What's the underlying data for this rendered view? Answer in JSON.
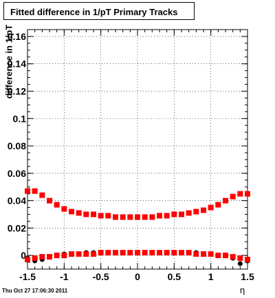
{
  "chart_data": {
    "type": "scatter",
    "title": "Fitted difference in 1/pT  Primary Tracks",
    "xlabel": "η",
    "ylabel": "difference in 1/pT",
    "xlim": [
      -1.5,
      1.5
    ],
    "ylim": [
      -0.01,
      0.165
    ],
    "x_ticks": [
      "-1.5",
      "-1",
      "-0.5",
      "0",
      "0.5",
      "1",
      "1.5"
    ],
    "y_ticks": [
      "0",
      "0.02",
      "0.04",
      "0.06",
      "0.08",
      "0.1",
      "0.12",
      "0.14",
      "0.16"
    ],
    "grid": true,
    "timestamp": "Thu Oct 27 17:06:30 2011",
    "colors": {
      "black_series": "#000000",
      "red_series": "#ff0000"
    },
    "series": [
      {
        "color": "black",
        "marker": "circle",
        "x": [
          -1.5,
          -1.4,
          -1.3,
          -1.2,
          -1.1,
          -1.0,
          -0.9,
          -0.8,
          -0.7,
          -0.6,
          -0.5,
          -0.4,
          -0.3,
          -0.2,
          -0.1,
          0.0,
          0.1,
          0.2,
          0.3,
          0.4,
          0.5,
          0.6,
          0.7,
          0.8,
          0.9,
          1.0,
          1.1,
          1.2,
          1.3,
          1.4,
          1.5
        ],
        "y": [
          -0.002,
          -0.004,
          -0.003,
          -0.001,
          0.0,
          0.001,
          0.001,
          0.001,
          0.002,
          0.002,
          0.002,
          0.002,
          0.002,
          0.002,
          0.002,
          0.002,
          0.002,
          0.002,
          0.002,
          0.002,
          0.002,
          0.002,
          0.002,
          0.002,
          0.001,
          0.001,
          0.0,
          0.0,
          -0.002,
          -0.006,
          -0.004
        ]
      },
      {
        "color": "red",
        "marker": "square",
        "x": [
          -1.5,
          -1.4,
          -1.3,
          -1.2,
          -1.1,
          -1.0,
          -0.9,
          -0.8,
          -0.7,
          -0.6,
          -0.5,
          -0.4,
          -0.3,
          -0.2,
          -0.1,
          0.0,
          0.1,
          0.2,
          0.3,
          0.4,
          0.5,
          0.6,
          0.7,
          0.8,
          0.9,
          1.0,
          1.1,
          1.2,
          1.3,
          1.4,
          1.5
        ],
        "y": [
          0.047,
          0.047,
          0.044,
          0.04,
          0.037,
          0.034,
          0.032,
          0.031,
          0.03,
          0.03,
          0.029,
          0.029,
          0.028,
          0.028,
          0.028,
          0.028,
          0.028,
          0.028,
          0.029,
          0.029,
          0.03,
          0.03,
          0.031,
          0.032,
          0.033,
          0.035,
          0.037,
          0.04,
          0.043,
          0.045,
          0.045
        ]
      },
      {
        "color": "red",
        "marker": "square",
        "x": [
          -1.5,
          -1.4,
          -1.3,
          -1.2,
          -1.1,
          -1.0,
          -0.9,
          -0.8,
          -0.7,
          -0.6,
          -0.5,
          -0.4,
          -0.3,
          -0.2,
          -0.1,
          0.0,
          0.1,
          0.2,
          0.3,
          0.4,
          0.5,
          0.6,
          0.7,
          0.8,
          0.9,
          1.0,
          1.1,
          1.2,
          1.3,
          1.4,
          1.5
        ],
        "y": [
          -0.003,
          -0.002,
          -0.001,
          -0.001,
          0.0,
          0.0,
          0.001,
          0.001,
          0.001,
          0.001,
          0.002,
          0.002,
          0.002,
          0.002,
          0.002,
          0.002,
          0.002,
          0.002,
          0.002,
          0.002,
          0.002,
          0.002,
          0.002,
          0.001,
          0.001,
          0.001,
          0.0,
          0.0,
          -0.001,
          -0.002,
          -0.003
        ]
      }
    ]
  }
}
